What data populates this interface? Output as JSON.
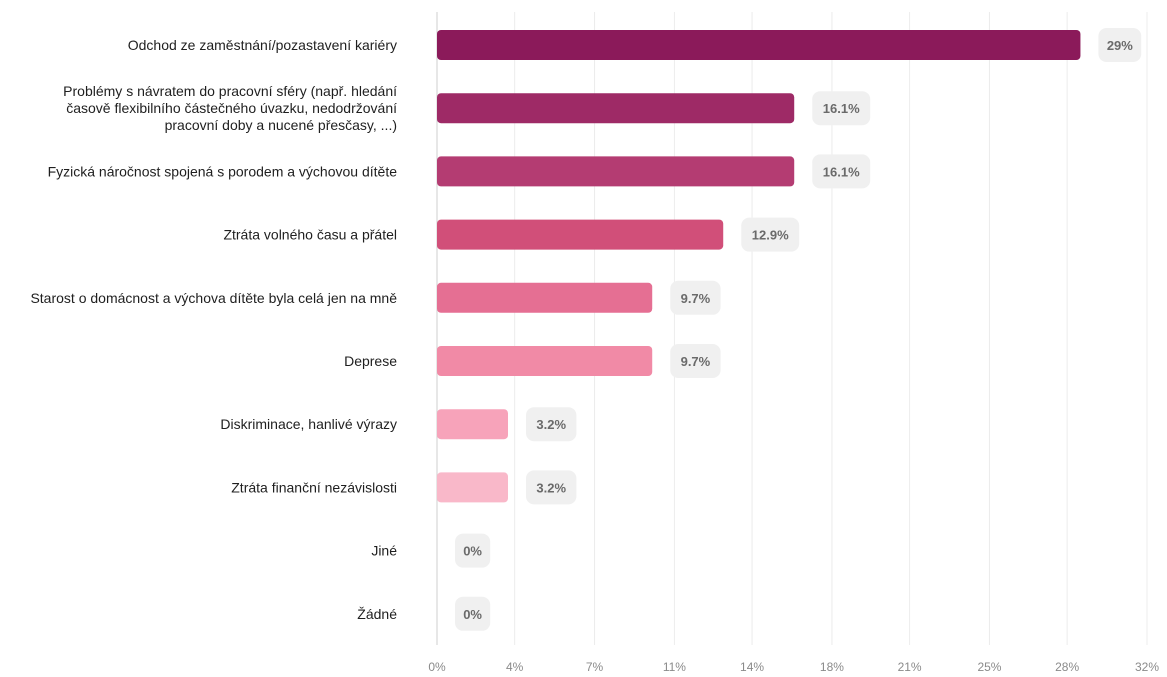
{
  "chart_data": {
    "type": "bar",
    "orientation": "horizontal",
    "categories": [
      "Odchod ze zaměstnání/pozastavení kariéry",
      "Problémy s návratem do pracovní sféry (např. hledání částečného flexibilního úvazku, nedodržování pracovní doby a nucené přesčasy, ...)",
      "Fyzická náročnost spojená s porodem a výchovou dítěte",
      "Ztráta volného času a přátel",
      "Starost o domácnost a výchova dítěte byla celá jen na mně",
      "Deprese",
      "Diskriminace, hanlivé výrazy",
      "Ztráta finanční nezávislosti",
      "Jiné",
      "Žádné"
    ],
    "category_lines": [
      [
        "Odchod ze zaměstnání/pozastavení kariéry"
      ],
      [
        "Problémy s návratem do pracovní sféry (např. hledání",
        "časově flexibilního částečného úvazku, nedodržování",
        "pracovní doby a nucené přesčasy, ...)"
      ],
      [
        "Fyzická náročnost spojená s porodem a výchovou dítěte"
      ],
      [
        "Ztráta volného času a přátel"
      ],
      [
        "Starost o domácnost a výchova dítěte byla celá jen na mně"
      ],
      [
        "Deprese"
      ],
      [
        "Diskriminace, hanlivé výrazy"
      ],
      [
        "Ztráta finanční nezávislosti"
      ],
      [
        "Jiné"
      ],
      [
        "Žádné"
      ]
    ],
    "values": [
      29,
      16.1,
      16.1,
      12.9,
      9.7,
      9.7,
      3.2,
      3.2,
      0,
      0
    ],
    "value_labels": [
      "29%",
      "16.1%",
      "16.1%",
      "12.9%",
      "9.7%",
      "9.7%",
      "3.2%",
      "3.2%",
      "0%",
      "0%"
    ],
    "bar_colors": [
      "#8b1a5a",
      "#9e2a66",
      "#b43c72",
      "#d14f79",
      "#e56f93",
      "#f18aa6",
      "#f7a3ba",
      "#f9b8c9",
      "#f9b8c9",
      "#f9b8c9"
    ],
    "xlim": [
      0,
      32
    ],
    "x_ticks": [
      0,
      3.5,
      7.1,
      10.7,
      14.2,
      17.8,
      21.3,
      24.9,
      28.4,
      32
    ],
    "x_tick_labels": [
      "0%",
      "4%",
      "7%",
      "11%",
      "14%",
      "18%",
      "21%",
      "25%",
      "28%",
      "32%"
    ],
    "grid": true,
    "title": "",
    "xlabel": "",
    "ylabel": ""
  }
}
